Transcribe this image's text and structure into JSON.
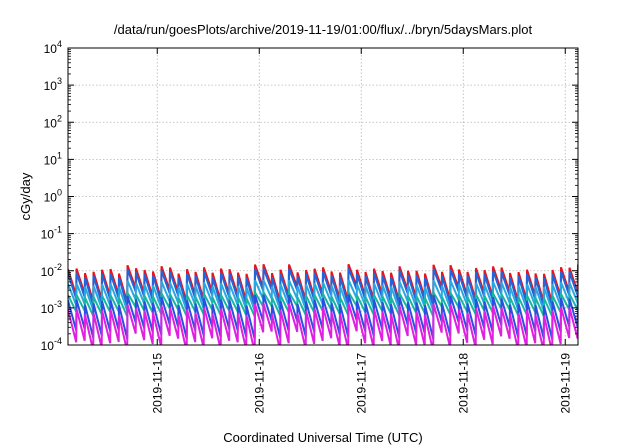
{
  "chart_data": {
    "type": "line",
    "title": "/data/run/goesPlots/archive/2019-11-19/01:00/flux/../bryn/5daysMars.plot",
    "xlabel": "Coordinated Universal Time (UTC)",
    "ylabel": "cGy/day",
    "yscale": "log",
    "ylim": [
      0.0001,
      10000
    ],
    "xlim": [
      "2019-11-14T03:00",
      "2019-11-19T03:00"
    ],
    "x_ticks": [
      "2019-11-15",
      "2019-11-16",
      "2019-11-17",
      "2019-11-18",
      "2019-11-19"
    ],
    "y_ticks": [
      {
        "base": "10",
        "exp": "-4"
      },
      {
        "base": "10",
        "exp": "-3"
      },
      {
        "base": "10",
        "exp": "-2"
      },
      {
        "base": "10",
        "exp": "-1"
      },
      {
        "base": "10",
        "exp": "0"
      },
      {
        "base": "10",
        "exp": "1"
      },
      {
        "base": "10",
        "exp": "2"
      },
      {
        "base": "10",
        "exp": "3"
      },
      {
        "base": "10",
        "exp": "4"
      }
    ],
    "grid": true,
    "legend": "none",
    "pattern": "sawtooth: 12 peaks per day, each peak decays across the interval; amplitude varies between cycles",
    "series": [
      {
        "color": "#e8141c",
        "peak": 0.011,
        "trough": 0.0022,
        "variance": 0.8
      },
      {
        "color": "#2563d8",
        "peak": 0.0085,
        "trough": 0.0018,
        "variance": 0.8
      },
      {
        "color": "#2aa7e0",
        "peak": 0.0045,
        "trough": 0.0012,
        "variance": 0.6
      },
      {
        "color": "#18b6a0",
        "peak": 0.0022,
        "trough": 0.0008,
        "variance": 0.5
      },
      {
        "color": "#2b50e0",
        "peak": 0.0016,
        "trough": 0.00025,
        "variance": 0.9
      },
      {
        "color": "#e020e0",
        "peak": 0.0009,
        "trough": 0.00012,
        "variance": 1.0
      }
    ]
  }
}
